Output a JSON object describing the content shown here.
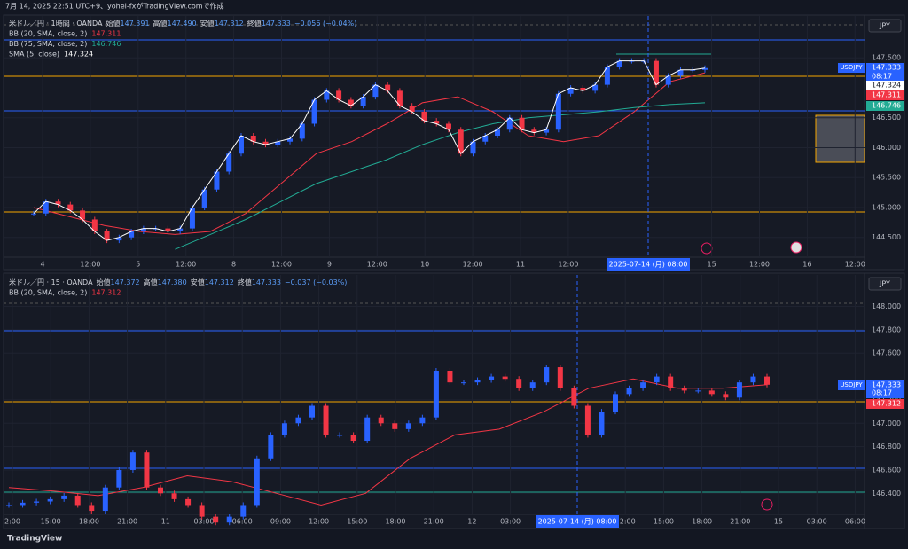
{
  "header": {
    "caption": "7月 14, 2025 22:51 UTC+9、yohei-fxがTradingView.comで作成"
  },
  "footer": {
    "brand": "TradingView"
  },
  "panes": [
    {
      "symbol": "米ドル／円 · 1時間 · OANDA",
      "ohlc": [
        {
          "label": "始値",
          "value": "147.391"
        },
        {
          "label": "高値",
          "value": "147.490"
        },
        {
          "label": "安値",
          "value": "147.312"
        },
        {
          "label": "終値",
          "value": "147.333"
        }
      ],
      "change": "−0.056 (−0.04%)",
      "indicators": [
        {
          "name": "BB (20, SMA, close, 2)",
          "value": "147.311",
          "color": "#f23645"
        },
        {
          "name": "BB (75, SMA, close, 2)",
          "value": "146.746",
          "color": "#22ab94"
        },
        {
          "name": "SMA (5, close)",
          "value": "147.324",
          "color": "#ffffff"
        }
      ],
      "currency": "JPY",
      "ticker": "USDJPY",
      "last": "147.333",
      "countdown": "08:17",
      "ylim": [
        144.17,
        148.2
      ],
      "yticks": [
        {
          "value": 144.5,
          "label": "144.500"
        },
        {
          "value": 145,
          "label": "145.000"
        },
        {
          "value": 145.5,
          "label": "145.500"
        },
        {
          "value": 146,
          "label": "146.000"
        },
        {
          "value": 146.5,
          "label": "146.500"
        },
        {
          "value": 147.5,
          "label": "147.500"
        }
      ],
      "time_labels": [
        "4",
        "12:00",
        "5",
        "12:00",
        "8",
        "12:00",
        "9",
        "12:00",
        "10",
        "12:00",
        "11",
        "12:00",
        null,
        null,
        "15",
        "12:00",
        "16",
        "12:00"
      ],
      "crosshair_label": "2025-07-14 (月)   08:00",
      "close": [
        144.9,
        145.1,
        145.05,
        144.95,
        144.8,
        144.6,
        144.45,
        144.5,
        144.6,
        144.65,
        144.65,
        144.6,
        144.65,
        145.0,
        145.3,
        145.6,
        145.9,
        146.2,
        146.1,
        146.05,
        146.1,
        146.15,
        146.4,
        146.8,
        146.95,
        146.8,
        146.7,
        146.85,
        147.05,
        146.95,
        146.7,
        146.6,
        146.45,
        146.4,
        146.3,
        145.9,
        146.1,
        146.2,
        146.3,
        146.5,
        146.3,
        146.25,
        146.3,
        146.9,
        147.0,
        146.95,
        147.05,
        147.35,
        147.45,
        147.45,
        147.45,
        147.05,
        147.2,
        147.3,
        147.3,
        147.33
      ],
      "bb20": [
        145.0,
        144.85,
        144.7,
        144.6,
        144.55,
        144.6,
        144.9,
        145.4,
        145.9,
        146.1,
        146.4,
        146.75,
        146.85,
        146.6,
        146.2,
        146.1,
        146.2,
        146.6,
        147.1,
        147.25
      ],
      "bb75": [
        null,
        null,
        null,
        null,
        144.3,
        144.55,
        144.8,
        145.1,
        145.4,
        145.6,
        145.8,
        146.05,
        146.25,
        146.4,
        146.5,
        146.55,
        146.6,
        146.67,
        146.72,
        146.75
      ]
    },
    {
      "symbol": "米ドル／円 · 15 · OANDA",
      "ohlc": [
        {
          "label": "始値",
          "value": "147.372"
        },
        {
          "label": "高値",
          "value": "147.380"
        },
        {
          "label": "安値",
          "value": "147.312"
        },
        {
          "label": "終値",
          "value": "147.333"
        }
      ],
      "change": "−0.037 (−0.03%)",
      "indicators": [
        {
          "name": "BB (20, SMA, close, 2)",
          "value": "147.312",
          "color": "#f23645"
        }
      ],
      "currency": "JPY",
      "ticker": "USDJPY",
      "last": "147.333",
      "countdown": "08:17",
      "ylim": [
        146.22,
        148.27
      ],
      "yticks": [
        {
          "value": 148,
          "label": "148.000"
        },
        {
          "value": 147.8,
          "label": "147.800"
        },
        {
          "value": 147.6,
          "label": "147.600"
        },
        {
          "value": 147.2,
          "label": "147.200"
        },
        {
          "value": 147,
          "label": "147.000"
        },
        {
          "value": 146.8,
          "label": "146.800"
        },
        {
          "value": 146.6,
          "label": "146.600"
        },
        {
          "value": 146.4,
          "label": "146.400"
        }
      ],
      "time_labels": [
        "2:00",
        "15:00",
        "18:00",
        "21:00",
        "11",
        "03:00",
        "06:00",
        "09:00",
        "12:00",
        "15:00",
        "18:00",
        "21:00",
        "12",
        "03:00",
        null,
        null,
        "12:00",
        "15:00",
        "18:00",
        "21:00",
        "15",
        "03:00",
        "06:00"
      ],
      "crosshair_label": "2025-07-14 (月)   08:00",
      "close": [
        146.3,
        146.32,
        146.33,
        146.35,
        146.38,
        146.3,
        146.25,
        146.45,
        146.6,
        146.75,
        146.45,
        146.4,
        146.35,
        146.3,
        146.2,
        146.15,
        146.2,
        146.3,
        146.7,
        146.9,
        147.0,
        147.05,
        147.15,
        146.9,
        146.9,
        146.85,
        147.05,
        147.0,
        146.95,
        147.0,
        147.05,
        147.45,
        147.35,
        147.35,
        147.37,
        147.4,
        147.38,
        147.3,
        147.35,
        147.48,
        147.3,
        147.15,
        146.9,
        147.1,
        147.25,
        147.3,
        147.35,
        147.4,
        147.3,
        147.28,
        147.28,
        147.25,
        147.22,
        147.35,
        147.4,
        147.33
      ],
      "bb20": [
        146.45,
        146.42,
        146.38,
        146.45,
        146.55,
        146.5,
        146.4,
        146.3,
        146.4,
        146.7,
        146.9,
        146.95,
        147.1,
        147.3,
        147.38,
        147.3,
        147.3,
        147.33
      ]
    }
  ]
}
